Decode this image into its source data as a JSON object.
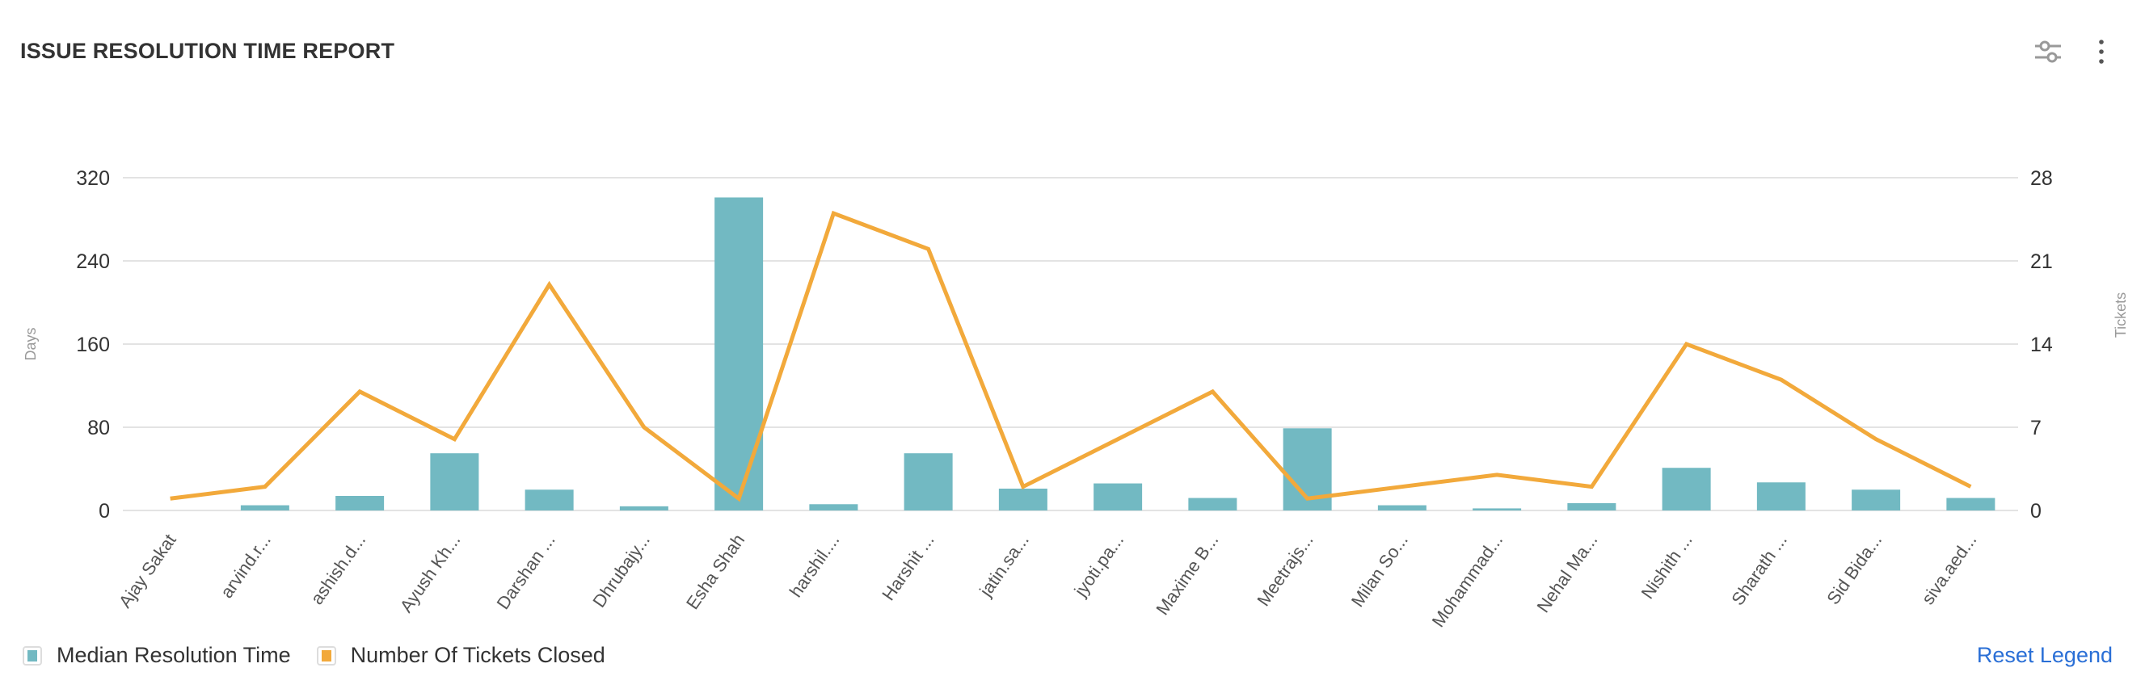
{
  "header": {
    "title": "ISSUE RESOLUTION TIME REPORT",
    "filter_icon": "sliders-icon",
    "menu_icon": "more-vertical-icon"
  },
  "legend": {
    "reset_label": "Reset Legend"
  },
  "chart_data": {
    "type": "bar+line",
    "categories": [
      "Ajay Sakat",
      "arvind.r...",
      "ashish.d...",
      "Ayush Kh...",
      "Darshan ...",
      "Dhrubajy...",
      "Esha Shah",
      "harshil....",
      "Harshit ...",
      "jatin.sa...",
      "jyoti.pa...",
      "Maxime B...",
      "Meetrajs...",
      "Milan So...",
      "Mohammad...",
      "Nehal Ma...",
      "Nishith ...",
      "Sharath ...",
      "Sid Bida...",
      "siva.aed..."
    ],
    "series": [
      {
        "name": "Median Resolution Time",
        "type": "bar",
        "axis": "left",
        "color": "#72b9c2",
        "values": [
          0,
          5,
          14,
          55,
          20,
          4,
          301,
          6,
          55,
          21,
          26,
          12,
          79,
          5,
          2,
          7,
          41,
          27,
          20,
          12
        ]
      },
      {
        "name": "Number Of Tickets Closed",
        "type": "line",
        "axis": "right",
        "color": "#f2a93b",
        "values": [
          1,
          2,
          10,
          6,
          19,
          7,
          1,
          25,
          22,
          2,
          6,
          10,
          1,
          2,
          3,
          2,
          14,
          11,
          6,
          2
        ]
      }
    ],
    "y_left": {
      "label": "Days",
      "ticks": [
        0,
        80,
        160,
        240,
        320
      ],
      "range": [
        0,
        320
      ]
    },
    "y_right": {
      "label": "Tickets",
      "ticks": [
        0,
        7,
        14,
        21,
        28
      ],
      "range": [
        0,
        28
      ]
    },
    "grid": true,
    "legend_position": "bottom-left"
  }
}
